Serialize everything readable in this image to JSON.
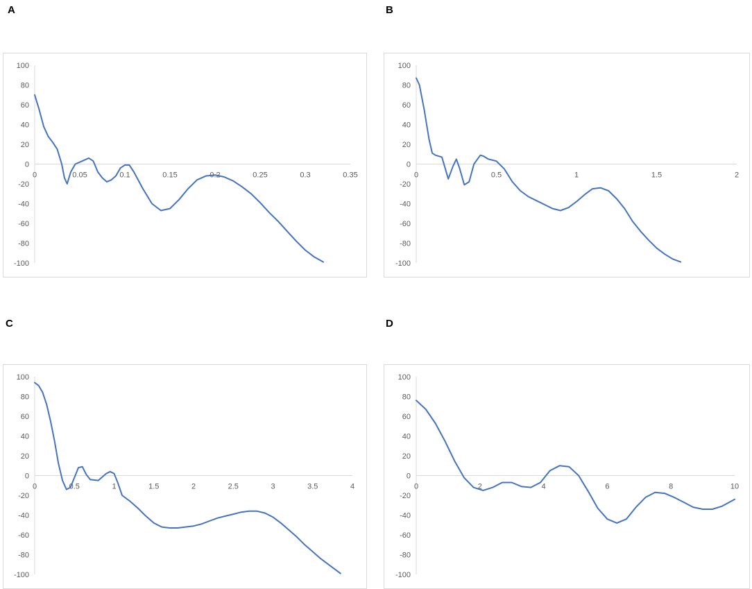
{
  "colors": {
    "line": "#4472c4",
    "axis": "#d9d9d9",
    "text": "#595959"
  },
  "panels": [
    {
      "label": "A"
    },
    {
      "label": "B"
    },
    {
      "label": "C"
    },
    {
      "label": "D"
    }
  ],
  "chart_data": [
    {
      "type": "line",
      "ylim": [
        -100,
        100
      ],
      "xlim": [
        0,
        0.35
      ],
      "yticks": [
        "100",
        "80",
        "60",
        "40",
        "20",
        "0",
        "-20",
        "-40",
        "-60",
        "-80",
        "-100"
      ],
      "xticks": [
        "0",
        "0.05",
        "0.1",
        "0.15",
        "0.2",
        "0.25",
        "0.3",
        "0.35"
      ],
      "series": [
        {
          "x": [
            0,
            0.005,
            0.01,
            0.015,
            0.02,
            0.025,
            0.03,
            0.033,
            0.036,
            0.04,
            0.045,
            0.05,
            0.055,
            0.06,
            0.065,
            0.07,
            0.075,
            0.08,
            0.085,
            0.09,
            0.095,
            0.1,
            0.105,
            0.11,
            0.12,
            0.13,
            0.14,
            0.15,
            0.16,
            0.17,
            0.18,
            0.19,
            0.2,
            0.21,
            0.22,
            0.23,
            0.24,
            0.25,
            0.26,
            0.27,
            0.28,
            0.29,
            0.3,
            0.31,
            0.32
          ],
          "y": [
            70,
            55,
            38,
            28,
            22,
            15,
            0,
            -14,
            -20,
            -8,
            0,
            2,
            4,
            6,
            3,
            -8,
            -14,
            -18,
            -16,
            -12,
            -4,
            -1,
            -1,
            -8,
            -25,
            -40,
            -47,
            -45,
            -36,
            -25,
            -16,
            -12,
            -11,
            -13,
            -17,
            -23,
            -30,
            -39,
            -49,
            -58,
            -68,
            -78,
            -87,
            -94,
            -99
          ]
        }
      ]
    },
    {
      "type": "line",
      "ylim": [
        -100,
        100
      ],
      "xlim": [
        0,
        2
      ],
      "yticks": [
        "100",
        "80",
        "60",
        "40",
        "20",
        "0",
        "-20",
        "-40",
        "-60",
        "-80",
        "-100"
      ],
      "xticks": [
        "0",
        "0.5",
        "1",
        "1.5",
        "2"
      ],
      "series": [
        {
          "x": [
            0,
            0.02,
            0.05,
            0.08,
            0.1,
            0.12,
            0.14,
            0.16,
            0.18,
            0.2,
            0.23,
            0.25,
            0.27,
            0.3,
            0.33,
            0.36,
            0.4,
            0.42,
            0.45,
            0.5,
            0.55,
            0.6,
            0.65,
            0.7,
            0.75,
            0.8,
            0.85,
            0.9,
            0.95,
            1.0,
            1.05,
            1.1,
            1.15,
            1.2,
            1.25,
            1.3,
            1.35,
            1.4,
            1.45,
            1.5,
            1.55,
            1.6,
            1.65
          ],
          "y": [
            87,
            80,
            55,
            25,
            11,
            9,
            8,
            7,
            -4,
            -15,
            -2,
            5,
            -4,
            -21,
            -18,
            0,
            9,
            8,
            5,
            3,
            -5,
            -18,
            -27,
            -33,
            -37,
            -41,
            -45,
            -47,
            -44,
            -38,
            -31,
            -25,
            -24,
            -27,
            -35,
            -45,
            -58,
            -68,
            -77,
            -85,
            -91,
            -96,
            -99
          ]
        }
      ]
    },
    {
      "type": "line",
      "ylim": [
        -100,
        100
      ],
      "xlim": [
        0,
        4
      ],
      "yticks": [
        "100",
        "80",
        "60",
        "40",
        "20",
        "0",
        "-20",
        "-40",
        "-60",
        "-80",
        "-100"
      ],
      "xticks": [
        "0",
        "0.5",
        "1",
        "1.5",
        "2",
        "2.5",
        "3",
        "3.5",
        "4"
      ],
      "series": [
        {
          "x": [
            0,
            0.05,
            0.1,
            0.15,
            0.2,
            0.25,
            0.3,
            0.35,
            0.4,
            0.45,
            0.5,
            0.55,
            0.6,
            0.65,
            0.7,
            0.8,
            0.9,
            0.95,
            1.0,
            1.05,
            1.1,
            1.2,
            1.3,
            1.4,
            1.5,
            1.6,
            1.7,
            1.8,
            1.9,
            2.0,
            2.1,
            2.2,
            2.3,
            2.4,
            2.5,
            2.6,
            2.7,
            2.8,
            2.9,
            3.0,
            3.1,
            3.2,
            3.3,
            3.4,
            3.5,
            3.6,
            3.7,
            3.8,
            3.85
          ],
          "y": [
            94,
            91,
            84,
            72,
            55,
            35,
            12,
            -5,
            -14,
            -12,
            -2,
            8,
            9,
            1,
            -4,
            -5,
            2,
            4,
            2,
            -8,
            -20,
            -26,
            -33,
            -41,
            -48,
            -52,
            -53,
            -53,
            -52,
            -51,
            -49,
            -46,
            -43,
            -41,
            -39,
            -37,
            -36,
            -36,
            -38,
            -42,
            -48,
            -55,
            -62,
            -70,
            -77,
            -84,
            -90,
            -96,
            -99
          ]
        }
      ]
    },
    {
      "type": "line",
      "ylim": [
        -100,
        100
      ],
      "xlim": [
        0,
        10
      ],
      "yticks": [
        "100",
        "80",
        "60",
        "40",
        "20",
        "0",
        "-20",
        "-40",
        "-60",
        "-80",
        "-100"
      ],
      "xticks": [
        "0",
        "2",
        "4",
        "6",
        "8",
        "10"
      ],
      "series": [
        {
          "x": [
            0,
            0.3,
            0.6,
            0.9,
            1.2,
            1.5,
            1.8,
            2.1,
            2.4,
            2.7,
            3.0,
            3.3,
            3.6,
            3.9,
            4.2,
            4.5,
            4.8,
            5.1,
            5.4,
            5.7,
            6.0,
            6.3,
            6.6,
            6.9,
            7.2,
            7.5,
            7.8,
            8.1,
            8.4,
            8.7,
            9.0,
            9.3,
            9.6,
            10.0
          ],
          "y": [
            76,
            67,
            53,
            35,
            15,
            -2,
            -12,
            -15,
            -12,
            -7,
            -7,
            -11,
            -12,
            -7,
            5,
            10,
            9,
            0,
            -16,
            -33,
            -44,
            -48,
            -44,
            -32,
            -22,
            -17,
            -18,
            -22,
            -27,
            -32,
            -34,
            -34,
            -31,
            -24
          ]
        }
      ]
    }
  ]
}
